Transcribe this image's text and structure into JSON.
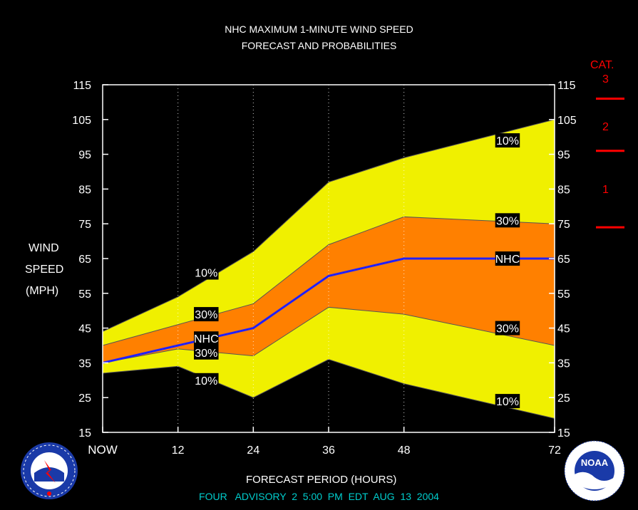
{
  "title_line1": "NHC MAXIMUM 1-MINUTE WIND SPEED",
  "title_line2": "FORECAST AND PROBABILITIES",
  "ylabel_lines": [
    "WIND",
    "SPEED",
    "(MPH)"
  ],
  "xlabel": "FORECAST PERIOD (HOURS)",
  "footer": "FOUR   ADVISORY  2  5:00  PM  EDT  AUG  13  2004",
  "colors": {
    "background": "#000000",
    "outer_band": "#f0f000",
    "inner_band": "#ff8000",
    "nhc_line": "#2020ff",
    "category": "#ff0000",
    "footer": "#00cccc"
  },
  "category": {
    "header": "CAT.",
    "labels": [
      "3",
      "2",
      "1"
    ],
    "thresholds_mph": [
      111,
      96,
      74
    ]
  },
  "chart_data": {
    "type": "area",
    "title": "NHC MAXIMUM 1-MINUTE WIND SPEED FORECAST AND PROBABILITIES",
    "xlabel": "FORECAST PERIOD (HOURS)",
    "ylabel": "WIND SPEED (MPH)",
    "x_ticks": [
      "NOW",
      "12",
      "24",
      "36",
      "48",
      "72"
    ],
    "x_tick_values": [
      0,
      12,
      24,
      36,
      48,
      72
    ],
    "xlim": [
      0,
      72
    ],
    "ylim": [
      15,
      115
    ],
    "y_ticks": [
      15,
      25,
      35,
      45,
      55,
      65,
      75,
      85,
      95,
      105,
      115
    ],
    "x": [
      0,
      12,
      24,
      36,
      48,
      72
    ],
    "series": [
      {
        "name": "10%",
        "values": [
          44,
          54,
          67,
          87,
          94,
          105
        ]
      },
      {
        "name": "30%",
        "values": [
          40,
          46,
          52,
          69,
          77,
          75
        ]
      },
      {
        "name": "NHC",
        "values": [
          35,
          40,
          45,
          60,
          65,
          65
        ]
      },
      {
        "name": "30%",
        "values": [
          35,
          39,
          37,
          51,
          49,
          40
        ]
      },
      {
        "name": "10%",
        "values": [
          32,
          34,
          25,
          36,
          29,
          19
        ]
      }
    ],
    "annotations": [
      {
        "text": "10%",
        "x": 16.5,
        "y": 61
      },
      {
        "text": "30%",
        "x": 16.5,
        "y": 49
      },
      {
        "text": "NHC",
        "x": 16.5,
        "y": 42
      },
      {
        "text": "30%",
        "x": 16.5,
        "y": 38
      },
      {
        "text": "10%",
        "x": 16.5,
        "y": 30
      },
      {
        "text": "10%",
        "x": 64.5,
        "y": 99
      },
      {
        "text": "30%",
        "x": 64.5,
        "y": 76
      },
      {
        "text": "NHC",
        "x": 64.5,
        "y": 65
      },
      {
        "text": "30%",
        "x": 64.5,
        "y": 45
      },
      {
        "text": "10%",
        "x": 64.5,
        "y": 24
      }
    ],
    "grid": "vertical-dotted",
    "legend": "none"
  }
}
